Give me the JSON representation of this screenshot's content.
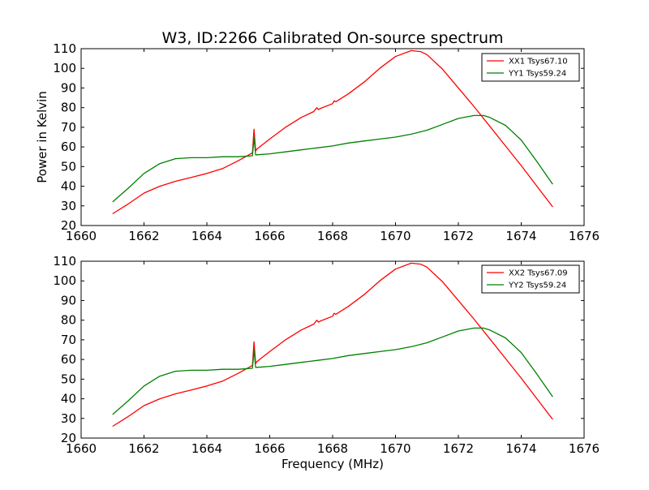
{
  "figure": {
    "title": "W3, ID:2266 Calibrated On-source spectrum",
    "xlabel": "Frequency (MHz)",
    "ylabel": "Power in Kelvin"
  },
  "chart_data": [
    {
      "type": "line",
      "title": "W3, ID:2266 Calibrated On-source spectrum",
      "xlabel": "",
      "ylabel": "Power in Kelvin",
      "xlim": [
        1660,
        1676
      ],
      "ylim": [
        20,
        110
      ],
      "xticks": [
        1660,
        1662,
        1664,
        1666,
        1668,
        1670,
        1672,
        1674,
        1676
      ],
      "yticks": [
        20,
        30,
        40,
        50,
        60,
        70,
        80,
        90,
        100,
        110
      ],
      "grid": false,
      "legend_position": "top-right",
      "series": [
        {
          "name": "XX1 Tsys67.10",
          "color": "#ff0000",
          "x": [
            1661.0,
            1661.5,
            1662.0,
            1662.5,
            1663.0,
            1663.5,
            1664.0,
            1664.5,
            1665.0,
            1665.45,
            1665.5,
            1665.55,
            1665.6,
            1666.0,
            1666.5,
            1667.0,
            1667.4,
            1667.5,
            1667.55,
            1667.6,
            1668.0,
            1668.05,
            1668.1,
            1668.5,
            1669.0,
            1669.5,
            1670.0,
            1670.5,
            1670.8,
            1671.0,
            1671.5,
            1672.0,
            1672.5,
            1673.0,
            1673.5,
            1674.0,
            1674.5,
            1675.0
          ],
          "y": [
            26,
            31,
            36.5,
            40,
            42.5,
            44.5,
            46.5,
            49,
            53,
            57,
            69,
            58,
            59,
            64,
            70,
            75,
            78,
            80,
            79,
            79.5,
            82,
            83.5,
            83,
            87,
            93,
            100,
            106,
            109,
            108.5,
            107,
            99.5,
            90,
            80.5,
            70.5,
            60.5,
            50.5,
            40,
            29.5
          ]
        },
        {
          "name": "YY1 Tsys59.24",
          "color": "#008000",
          "x": [
            1661.0,
            1661.5,
            1662.0,
            1662.5,
            1663.0,
            1663.5,
            1664.0,
            1664.5,
            1665.0,
            1665.45,
            1665.5,
            1665.55,
            1665.6,
            1666.0,
            1666.5,
            1667.0,
            1667.5,
            1668.0,
            1668.5,
            1669.0,
            1669.5,
            1670.0,
            1670.5,
            1671.0,
            1671.5,
            1672.0,
            1672.5,
            1672.8,
            1673.0,
            1673.5,
            1674.0,
            1674.5,
            1675.0
          ],
          "y": [
            32,
            39,
            46.5,
            51.5,
            54,
            54.5,
            54.5,
            55,
            55,
            55.5,
            65,
            56,
            56,
            56.5,
            57.5,
            58.5,
            59.5,
            60.5,
            62,
            63,
            64,
            65,
            66.5,
            68.5,
            71.5,
            74.5,
            76,
            76,
            75,
            71,
            63.5,
            52.5,
            41
          ]
        }
      ]
    },
    {
      "type": "line",
      "title": "",
      "xlabel": "Frequency (MHz)",
      "ylabel": "",
      "xlim": [
        1660,
        1676
      ],
      "ylim": [
        20,
        110
      ],
      "xticks": [
        1660,
        1662,
        1664,
        1666,
        1668,
        1670,
        1672,
        1674,
        1676
      ],
      "yticks": [
        20,
        30,
        40,
        50,
        60,
        70,
        80,
        90,
        100,
        110
      ],
      "grid": false,
      "legend_position": "top-right",
      "series": [
        {
          "name": "XX2 Tsys67.09",
          "color": "#ff0000",
          "x": [
            1661.0,
            1661.5,
            1662.0,
            1662.5,
            1663.0,
            1663.5,
            1664.0,
            1664.5,
            1665.0,
            1665.45,
            1665.5,
            1665.55,
            1665.6,
            1666.0,
            1666.5,
            1667.0,
            1667.4,
            1667.5,
            1667.55,
            1667.6,
            1668.0,
            1668.05,
            1668.1,
            1668.5,
            1669.0,
            1669.5,
            1670.0,
            1670.5,
            1670.8,
            1671.0,
            1671.5,
            1672.0,
            1672.5,
            1673.0,
            1673.5,
            1674.0,
            1674.5,
            1675.0
          ],
          "y": [
            26,
            31,
            36.5,
            40,
            42.5,
            44.5,
            46.5,
            49,
            53,
            57,
            69,
            58,
            59,
            64,
            70,
            75,
            78,
            80,
            79,
            79.5,
            82,
            83.5,
            83,
            87,
            93,
            100,
            106,
            109,
            108.5,
            107,
            99.5,
            90,
            80.5,
            70.5,
            60.5,
            50.5,
            40,
            29.5
          ]
        },
        {
          "name": "YY2 Tsys59.24",
          "color": "#008000",
          "x": [
            1661.0,
            1661.5,
            1662.0,
            1662.5,
            1663.0,
            1663.5,
            1664.0,
            1664.5,
            1665.0,
            1665.45,
            1665.5,
            1665.55,
            1665.6,
            1666.0,
            1666.5,
            1667.0,
            1667.5,
            1668.0,
            1668.5,
            1669.0,
            1669.5,
            1670.0,
            1670.5,
            1671.0,
            1671.5,
            1672.0,
            1672.5,
            1672.8,
            1673.0,
            1673.5,
            1674.0,
            1674.5,
            1675.0
          ],
          "y": [
            32,
            39,
            46.5,
            51.5,
            54,
            54.5,
            54.5,
            55,
            55,
            55.5,
            65,
            56,
            56,
            56.5,
            57.5,
            58.5,
            59.5,
            60.5,
            62,
            63,
            64,
            65,
            66.5,
            68.5,
            71.5,
            74.5,
            76,
            76,
            75,
            71,
            63.5,
            52.5,
            41
          ]
        }
      ]
    }
  ]
}
